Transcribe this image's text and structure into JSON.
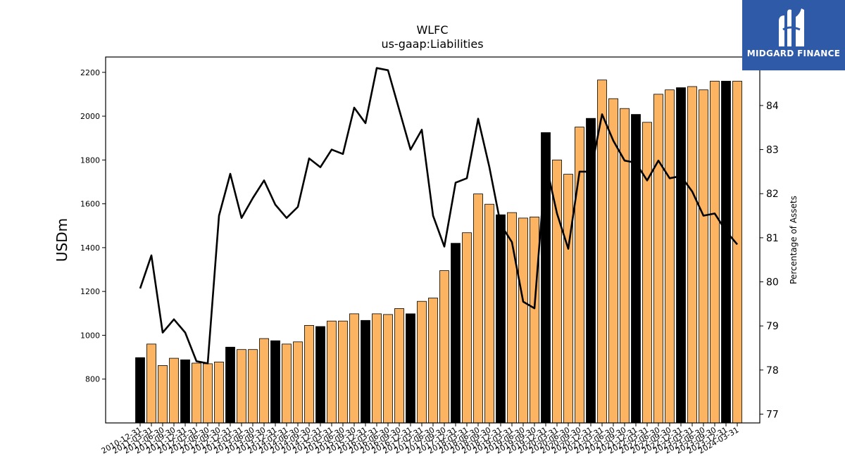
{
  "chart_data": {
    "type": "bar",
    "title": "WLFC",
    "subtitle": "us-gaap:Liabilities",
    "ylabel": "USDm",
    "y2label": "Percentage of Assets",
    "ylim": [
      600,
      2270
    ],
    "y2lim": [
      76.8,
      85.1
    ],
    "yticks": [
      800,
      1000,
      1200,
      1400,
      1600,
      1800,
      2000,
      2200
    ],
    "y2ticks": [
      77,
      78,
      79,
      80,
      81,
      82,
      83,
      84
    ],
    "categories": [
      "2010-12-31",
      "2011-03-31",
      "2011-06-30",
      "2011-09-30",
      "2011-12-31",
      "2012-03-31",
      "2012-06-30",
      "2012-09-30",
      "2012-12-31",
      "2013-03-31",
      "2013-06-30",
      "2013-09-30",
      "2013-12-31",
      "2014-03-31",
      "2014-06-30",
      "2014-09-30",
      "2014-12-31",
      "2015-03-31",
      "2015-06-30",
      "2015-09-30",
      "2015-12-31",
      "2016-03-31",
      "2016-06-30",
      "2016-09-30",
      "2016-12-31",
      "2017-03-31",
      "2017-06-30",
      "2017-09-30",
      "2017-12-31",
      "2018-03-31",
      "2018-06-30",
      "2018-09-30",
      "2018-12-31",
      "2019-03-31",
      "2019-06-30",
      "2019-09-30",
      "2019-12-31",
      "2020-03-31",
      "2020-06-30",
      "2020-09-30",
      "2020-12-31",
      "2021-03-31",
      "2021-06-30",
      "2021-09-30",
      "2021-12-31",
      "2022-03-31",
      "2022-06-30",
      "2022-09-30",
      "2022-12-31",
      "2023-03-31",
      "2023-06-30",
      "2023-09-30",
      "2023-12-31",
      "2024-03-31"
    ],
    "series": [
      {
        "type": "bar",
        "values": [
          898,
          960,
          862,
          895,
          888,
          873,
          870,
          878,
          946,
          935,
          935,
          985,
          975,
          960,
          970,
          1045,
          1040,
          1065,
          1065,
          1098,
          1068,
          1098,
          1095,
          1122,
          1098,
          1155,
          1170,
          1295,
          1420,
          1468,
          1645,
          1598,
          1550,
          1560,
          1535,
          1540,
          1925,
          1800,
          1735,
          1950,
          1990,
          2165,
          2080,
          2035,
          2008,
          1972,
          2100,
          2120,
          2130,
          2135,
          2120,
          2160,
          2160,
          2160
        ],
        "highlight": [
          0,
          4,
          8,
          12,
          16,
          20,
          24,
          28,
          32,
          36,
          40,
          44,
          48,
          52
        ],
        "highlight_color": "#000000",
        "color": "#fdb462"
      },
      {
        "type": "line",
        "axis": "right",
        "color": "#000000",
        "values": [
          79.85,
          80.6,
          78.85,
          79.15,
          78.85,
          78.2,
          78.15,
          81.5,
          82.45,
          81.45,
          81.9,
          82.3,
          81.75,
          81.45,
          81.7,
          82.8,
          82.6,
          83.0,
          82.9,
          83.95,
          83.6,
          84.85,
          84.8,
          83.9,
          83.0,
          83.45,
          81.5,
          80.8,
          82.25,
          82.35,
          83.7,
          82.6,
          81.3,
          80.9,
          79.55,
          79.4,
          82.7,
          81.55,
          80.75,
          82.5,
          82.5,
          83.8,
          83.2,
          82.75,
          82.7,
          82.3,
          82.75,
          82.35,
          82.4,
          82.05,
          81.5,
          81.55,
          81.15,
          80.85
        ]
      }
    ],
    "grid": false
  },
  "logo": {
    "brand": "MIDGARD FINANCE",
    "bg_color": "#2f5aa8"
  }
}
